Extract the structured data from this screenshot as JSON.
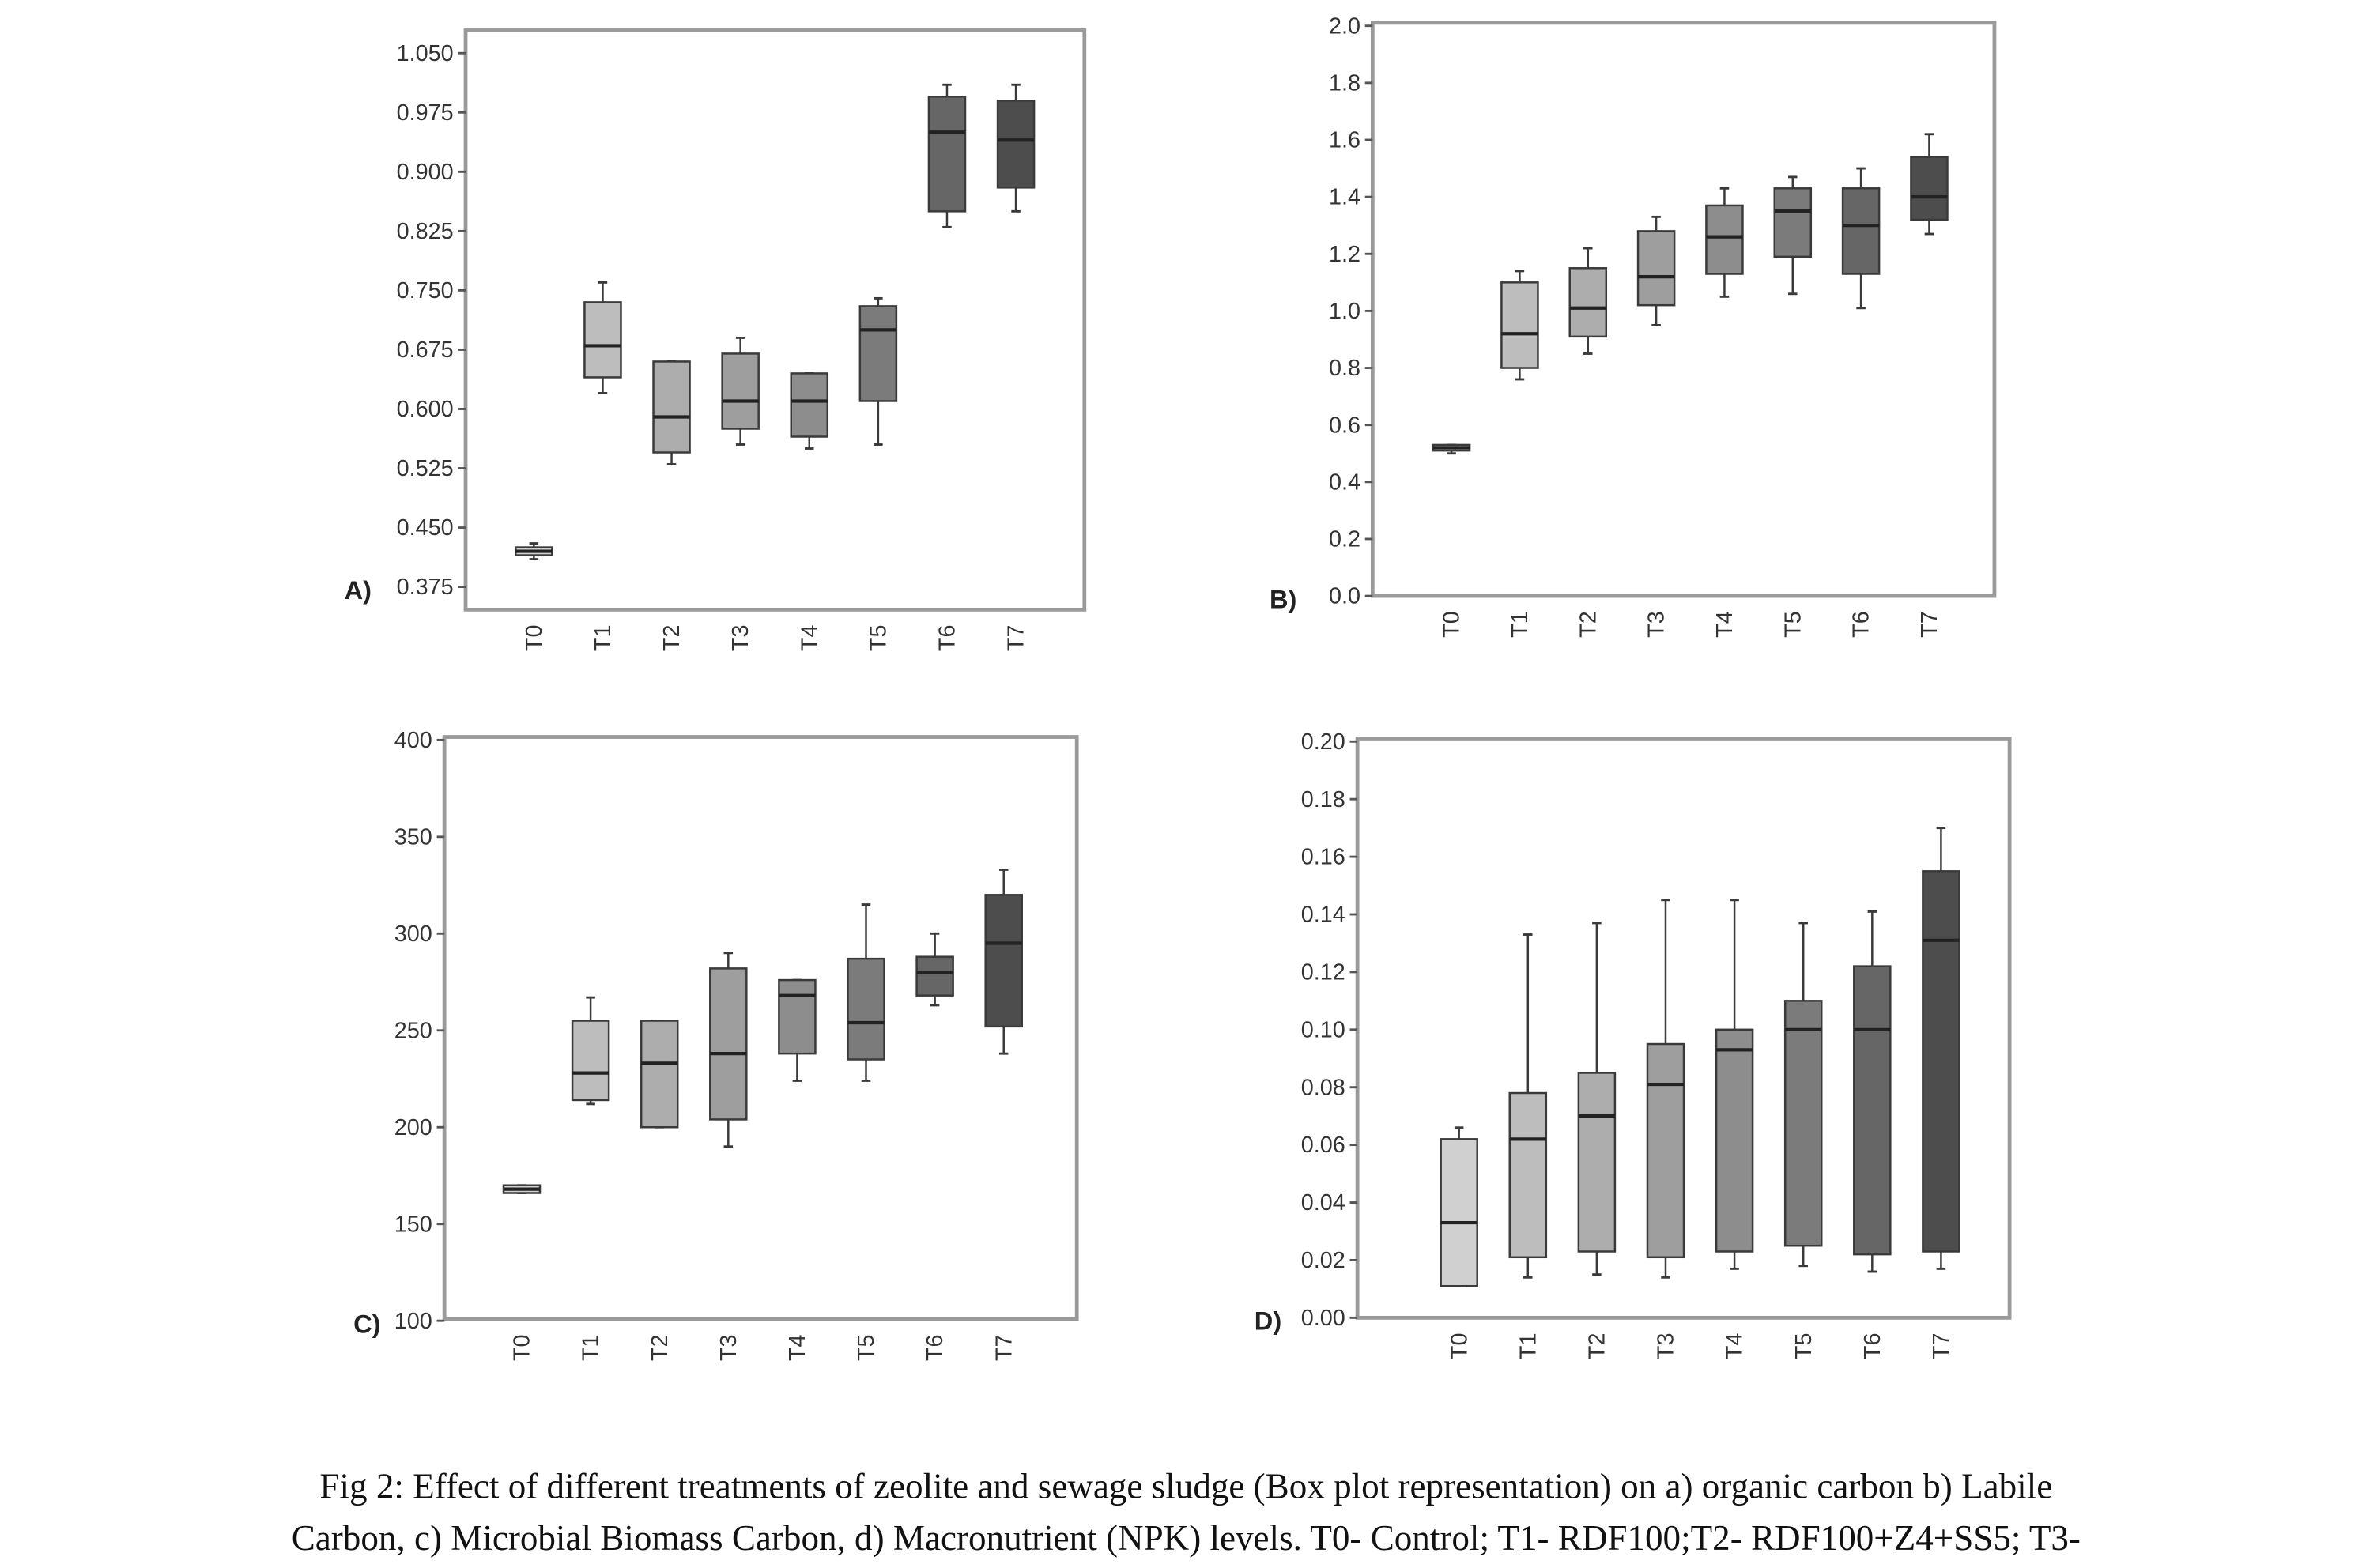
{
  "caption": {
    "line1": "Fig 2: Effect of different treatments of zeolite and sewage sludge (Box plot representation) on a) organic carbon b) Labile",
    "line2": "Carbon, c) Microbial Biomass Carbon, d) Macronutrient (NPK) levels. T0- Control; T1- RDF100;T2- RDF100+Z4+SS5; T3-"
  },
  "chart_data": [
    {
      "type": "box",
      "panel_label": "A)",
      "categories": [
        "T0",
        "T1",
        "T2",
        "T3",
        "T4",
        "T5",
        "T6",
        "T7"
      ],
      "ylim": [
        0.375,
        1.05
      ],
      "yticks": [
        "0.375",
        "0.450",
        "0.525",
        "0.600",
        "0.675",
        "0.750",
        "0.825",
        "0.900",
        "0.975",
        "1.050"
      ],
      "ytick_values": [
        0.375,
        0.45,
        0.525,
        0.6,
        0.675,
        0.75,
        0.825,
        0.9,
        0.975,
        1.05
      ],
      "boxes": [
        [
          0.41,
          0.415,
          0.42,
          0.425,
          0.43
        ],
        [
          0.62,
          0.64,
          0.68,
          0.735,
          0.76
        ],
        [
          0.53,
          0.545,
          0.59,
          0.66,
          0.66
        ],
        [
          0.555,
          0.575,
          0.61,
          0.67,
          0.69
        ],
        [
          0.55,
          0.565,
          0.61,
          0.645,
          0.645
        ],
        [
          0.555,
          0.61,
          0.7,
          0.73,
          0.74
        ],
        [
          0.83,
          0.85,
          0.95,
          0.995,
          1.01
        ],
        [
          0.85,
          0.88,
          0.94,
          0.99,
          1.01
        ]
      ]
    },
    {
      "type": "box",
      "panel_label": "B)",
      "categories": [
        "T0",
        "T1",
        "T2",
        "T3",
        "T4",
        "T5",
        "T6",
        "T7"
      ],
      "ylim": [
        0,
        2.0
      ],
      "yticks": [
        "0.0",
        "0.2",
        "0.4",
        "0.6",
        "0.8",
        "1.0",
        "1.2",
        "1.4",
        "1.6",
        "1.8",
        "2.0"
      ],
      "ytick_values": [
        0,
        0.2,
        0.4,
        0.6,
        0.8,
        1.0,
        1.2,
        1.4,
        1.6,
        1.8,
        2.0
      ],
      "boxes": [
        [
          0.5,
          0.51,
          0.52,
          0.53,
          0.53
        ],
        [
          0.76,
          0.8,
          0.92,
          1.1,
          1.14
        ],
        [
          0.85,
          0.91,
          1.01,
          1.15,
          1.22
        ],
        [
          0.95,
          1.02,
          1.12,
          1.28,
          1.33
        ],
        [
          1.05,
          1.13,
          1.26,
          1.37,
          1.43
        ],
        [
          1.06,
          1.19,
          1.35,
          1.43,
          1.47
        ],
        [
          1.01,
          1.13,
          1.3,
          1.43,
          1.5
        ],
        [
          1.27,
          1.32,
          1.4,
          1.54,
          1.62
        ]
      ]
    },
    {
      "type": "box",
      "panel_label": "C)",
      "categories": [
        "T0",
        "T1",
        "T2",
        "T3",
        "T4",
        "T5",
        "T6",
        "T7"
      ],
      "ylim": [
        100,
        400
      ],
      "yticks": [
        "100",
        "150",
        "200",
        "250",
        "300",
        "350",
        "400"
      ],
      "ytick_values": [
        100,
        150,
        200,
        250,
        300,
        350,
        400
      ],
      "boxes": [
        [
          166,
          166,
          168,
          170,
          170
        ],
        [
          212,
          214,
          228,
          255,
          267
        ],
        [
          200,
          200,
          233,
          255,
          255
        ],
        [
          190,
          204,
          238,
          282,
          290
        ],
        [
          224,
          238,
          268,
          276,
          276
        ],
        [
          224,
          235,
          254,
          287,
          315
        ],
        [
          263,
          268,
          280,
          288,
          300
        ],
        [
          238,
          252,
          295,
          320,
          333
        ]
      ]
    },
    {
      "type": "box",
      "panel_label": "D)",
      "categories": [
        "T0",
        "T1",
        "T2",
        "T3",
        "T4",
        "T5",
        "T6",
        "T7"
      ],
      "ylim": [
        0,
        0.2
      ],
      "yticks": [
        "0.00",
        "0.02",
        "0.04",
        "0.06",
        "0.08",
        "0.10",
        "0.12",
        "0.14",
        "0.16",
        "0.18",
        "0.20"
      ],
      "ytick_values": [
        0,
        0.02,
        0.04,
        0.06,
        0.08,
        0.1,
        0.12,
        0.14,
        0.16,
        0.18,
        0.2
      ],
      "boxes": [
        [
          0.011,
          0.011,
          0.033,
          0.062,
          0.066
        ],
        [
          0.014,
          0.021,
          0.062,
          0.078,
          0.133
        ],
        [
          0.015,
          0.023,
          0.07,
          0.085,
          0.137
        ],
        [
          0.014,
          0.021,
          0.081,
          0.095,
          0.145
        ],
        [
          0.017,
          0.023,
          0.093,
          0.1,
          0.145
        ],
        [
          0.018,
          0.025,
          0.1,
          0.11,
          0.137
        ],
        [
          0.016,
          0.022,
          0.1,
          0.122,
          0.141
        ],
        [
          0.017,
          0.023,
          0.131,
          0.155,
          0.17
        ]
      ]
    }
  ],
  "colors": {
    "fills": [
      "#d0d0d0",
      "#bdbdbd",
      "#adadad",
      "#9e9e9e",
      "#8d8d8d",
      "#7b7b7b",
      "#666666",
      "#4d4d4d"
    ],
    "frame": "#9a9a9a",
    "stroke": "#3a3a3a"
  }
}
